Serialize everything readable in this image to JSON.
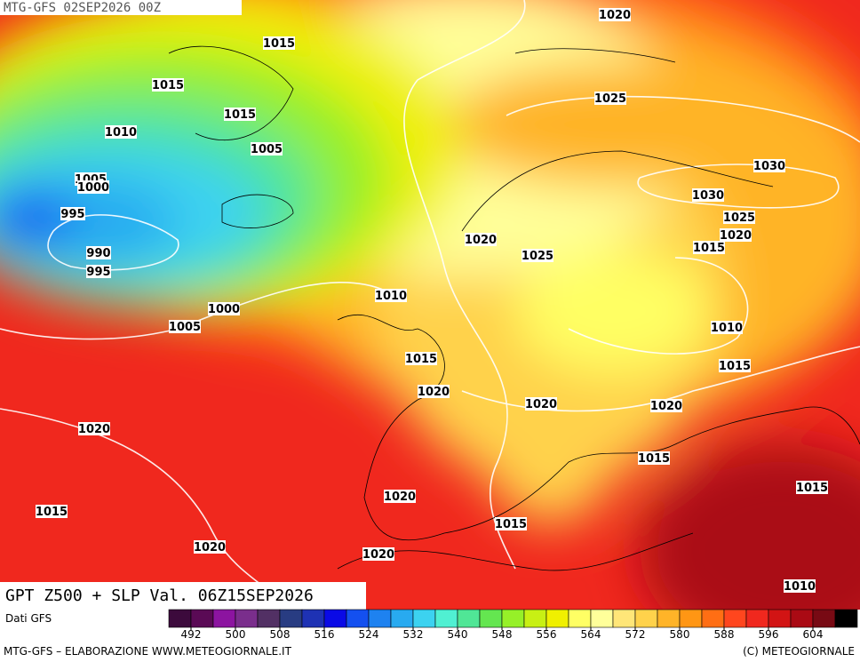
{
  "header": "MTG-GFS 02SEP2026 00Z",
  "title": "GPT Z500 + SLP Val. 06Z15SEP2026",
  "source": "Dati GFS",
  "footer_left": "MTG-GFS – ELABORAZIONE WWW.METEOGIORNALE.IT",
  "footer_right": "(C) METEOGIORNALE",
  "isobars": [
    "1020",
    "1015",
    "1015",
    "1025",
    "1015",
    "1010",
    "1005",
    "1030",
    "1005",
    "1000",
    "1030",
    "995",
    "1025",
    "1020",
    "1020",
    "1015",
    "990",
    "1025",
    "995",
    "1010",
    "1000",
    "1005",
    "1010",
    "1015",
    "1015",
    "1020",
    "1020",
    "1020",
    "1020",
    "1015",
    "1015",
    "1020",
    "1015",
    "1015",
    "1020",
    "1020",
    "1010"
  ],
  "colorbar": {
    "lim": [
      488,
      612
    ],
    "ticks": [
      492,
      500,
      508,
      516,
      524,
      532,
      540,
      548,
      556,
      564,
      572,
      580,
      588,
      596,
      604
    ],
    "colors": [
      "#3c0a3c",
      "#5a0a55",
      "#8c14a0",
      "#7a2e8c",
      "#523064",
      "#283c82",
      "#1e32b4",
      "#0a0ae6",
      "#1450f0",
      "#1e82f0",
      "#28aaf0",
      "#3cd2f0",
      "#50f0d2",
      "#50e696",
      "#64e650",
      "#96f028",
      "#c8f014",
      "#f0f000",
      "#ffff64",
      "#ffff9a",
      "#ffe678",
      "#ffd24b",
      "#ffb428",
      "#ff9614",
      "#ff6e14",
      "#ff461e",
      "#f0281e",
      "#d21414",
      "#aa0a14",
      "#780a14",
      "#000000"
    ]
  }
}
